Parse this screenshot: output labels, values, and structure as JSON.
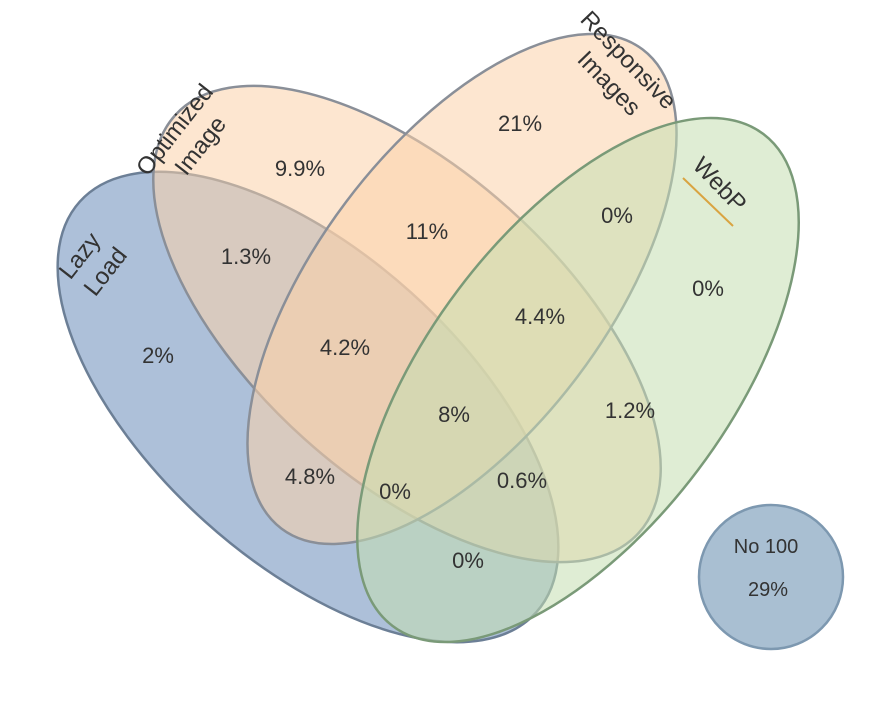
{
  "sets": [
    {
      "id": "lazy-load",
      "label_lines": [
        "Lazy",
        "Load"
      ],
      "color": "#7796c0",
      "stroke": "#6c7f96"
    },
    {
      "id": "optimized-image",
      "label_lines": [
        "Optimized",
        "Image"
      ],
      "color": "#fbd1aa",
      "stroke": "#8a8f98"
    },
    {
      "id": "responsive-images",
      "label_lines": [
        "Responsive",
        "Images"
      ],
      "color": "#fbd1aa",
      "stroke": "#8a8f98"
    },
    {
      "id": "webp",
      "label_lines": [
        "WebP"
      ],
      "color": "#c5deb0",
      "stroke": "#7a9a78",
      "underline_color": "#d9a441"
    }
  ],
  "regions": [
    {
      "id": "lazy-only",
      "value": "2%"
    },
    {
      "id": "optimized-only",
      "value": "9.9%"
    },
    {
      "id": "responsive-only",
      "value": "21%"
    },
    {
      "id": "webp-only",
      "value": "0%"
    },
    {
      "id": "lazy-optimized",
      "value": "1.3%"
    },
    {
      "id": "optimized-responsive",
      "value": "11%"
    },
    {
      "id": "responsive-webp",
      "value": "0%"
    },
    {
      "id": "lazy-optimized-responsive",
      "value": "4.2%"
    },
    {
      "id": "optimized-responsive-webp",
      "value": "4.4%"
    },
    {
      "id": "all-four",
      "value": "8%"
    },
    {
      "id": "optimized-webp",
      "value": "1.2%"
    },
    {
      "id": "lazy-optimized-webp",
      "value": "4.8%"
    },
    {
      "id": "lazy-responsive",
      "value": "0%"
    },
    {
      "id": "lazy-responsive-webp",
      "value": "0.6%"
    },
    {
      "id": "lazy-webp",
      "value": "0%"
    }
  ],
  "extra": {
    "label": "No 100",
    "value": "29%",
    "color": "#a9bfd2",
    "stroke": "#7d98b0"
  }
}
